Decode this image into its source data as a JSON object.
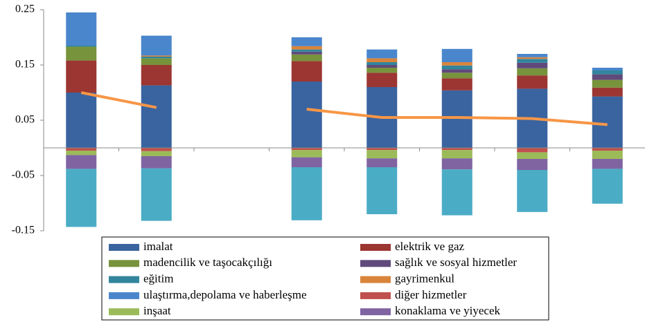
{
  "chart_data": {
    "type": "bar",
    "stacked": true,
    "categories": [
      null,
      null,
      null,
      null,
      null,
      null,
      null,
      null
    ],
    "ylim": [
      -0.15,
      0.25
    ],
    "yticks": [
      0.25,
      0.15,
      0.05,
      -0.05,
      -0.15
    ],
    "grid": false,
    "series": [
      {
        "name": "imalat",
        "color": "#3a64a0",
        "values": [
          0.1,
          0.113,
          null,
          0.12,
          0.11,
          0.104,
          0.107,
          0.093
        ]
      },
      {
        "name": "elektrik ve gaz",
        "color": "#9b3632",
        "values": [
          0.058,
          0.037,
          null,
          0.037,
          0.026,
          0.022,
          0.024,
          0.016
        ]
      },
      {
        "name": "madencilik ve taşocakçılığı",
        "color": "#77933c",
        "values": [
          0.025,
          0.012,
          null,
          0.012,
          0.009,
          0.01,
          0.013,
          0.014
        ]
      },
      {
        "name": "sağlık ve sosyal hizmetler",
        "color": "#604a7b",
        "values": [
          0,
          0,
          null,
          0.005,
          0.005,
          0.006,
          0.01,
          0.01
        ]
      },
      {
        "name": "eğitim",
        "color": "#31859c",
        "values": [
          0.002,
          0.003,
          null,
          0.004,
          0.005,
          0.007,
          0.007,
          0.007
        ]
      },
      {
        "name": "gayrimenkul",
        "color": "#d9843b",
        "values": [
          0,
          0.002,
          null,
          0.006,
          0.007,
          0.006,
          0.003,
          0
        ]
      },
      {
        "name": "ulaştırma,depolama ve haberleşme",
        "color": "#4a86cc",
        "values": [
          0.06,
          0.036,
          null,
          0.016,
          0.016,
          0.024,
          0.006,
          0.005
        ]
      },
      {
        "name": "diğer hizmetler",
        "color": "#c0504d",
        "values": [
          -0.005,
          -0.006,
          null,
          -0.004,
          -0.004,
          -0.004,
          -0.008,
          -0.005
        ]
      },
      {
        "name": "inşaat",
        "color": "#9bbb59",
        "values": [
          -0.008,
          -0.009,
          null,
          -0.013,
          -0.015,
          -0.015,
          -0.012,
          -0.015
        ]
      },
      {
        "name": "konaklama ve yiyecek",
        "color": "#8064a2",
        "values": [
          -0.025,
          -0.022,
          null,
          -0.018,
          -0.016,
          -0.02,
          -0.02,
          -0.018
        ]
      },
      {
        "color": "#4bacc6",
        "values": [
          -0.105,
          -0.095,
          null,
          -0.096,
          -0.085,
          -0.083,
          -0.076,
          -0.063
        ]
      },
      {
        "type": "line",
        "color": "#f79646",
        "values": [
          0.1,
          0.073,
          null,
          0.07,
          0.055,
          0.055,
          0.053,
          0.042
        ]
      }
    ]
  }
}
